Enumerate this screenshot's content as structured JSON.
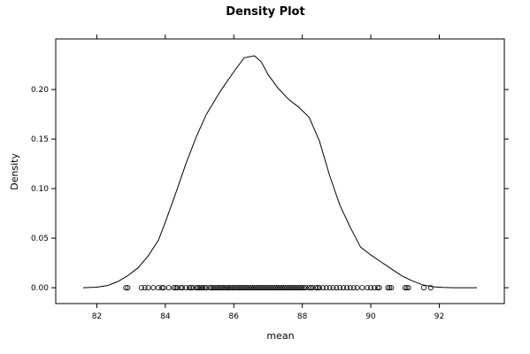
{
  "chart_data": {
    "type": "line",
    "title": "Density Plot",
    "xlabel": "mean",
    "ylabel": "Density",
    "xlim": [
      80.8,
      93.9
    ],
    "ylim": [
      -0.016,
      0.251
    ],
    "x_ticks": [
      82,
      84,
      86,
      88,
      90,
      92
    ],
    "x_tick_labels": [
      "82",
      "84",
      "86",
      "88",
      "90",
      "92"
    ],
    "y_ticks": [
      0.0,
      0.05,
      0.1,
      0.15,
      0.2
    ],
    "y_tick_labels": [
      "0.00",
      "0.05",
      "0.10",
      "0.15",
      "0.20"
    ],
    "grid": false,
    "legend": "none",
    "line_color": "#000000",
    "point_color": "#000000",
    "series": [
      {
        "kind": "density-curve",
        "x": [
          81.6,
          82.0,
          82.3,
          82.6,
          82.9,
          83.2,
          83.5,
          83.8,
          84.0,
          84.3,
          84.6,
          84.9,
          85.2,
          85.6,
          86.0,
          86.3,
          86.6,
          86.8,
          87.0,
          87.3,
          87.6,
          87.9,
          88.2,
          88.5,
          88.8,
          89.1,
          89.4,
          89.7,
          90.0,
          90.3,
          90.6,
          90.9,
          91.2,
          91.5,
          91.8,
          92.1,
          92.4,
          92.7,
          93.1
        ],
        "y": [
          0.0,
          0.0005,
          0.002,
          0.006,
          0.012,
          0.02,
          0.032,
          0.048,
          0.066,
          0.095,
          0.125,
          0.152,
          0.175,
          0.198,
          0.218,
          0.232,
          0.234,
          0.228,
          0.215,
          0.201,
          0.19,
          0.182,
          0.172,
          0.148,
          0.113,
          0.083,
          0.061,
          0.041,
          0.033,
          0.026,
          0.019,
          0.012,
          0.007,
          0.003,
          0.001,
          0.0003,
          0.0,
          0.0,
          0.0
        ]
      },
      {
        "kind": "rug-points",
        "y_level": 0,
        "x": [
          82.85,
          82.9,
          83.3,
          83.4,
          83.5,
          83.65,
          83.8,
          83.9,
          83.95,
          84.1,
          84.25,
          84.3,
          84.35,
          84.45,
          84.5,
          84.6,
          84.7,
          84.75,
          84.8,
          84.9,
          84.95,
          85.0,
          85.05,
          85.1,
          85.15,
          85.2,
          85.3,
          85.35,
          85.4,
          85.45,
          85.5,
          85.55,
          85.6,
          85.65,
          85.7,
          85.75,
          85.8,
          85.85,
          85.9,
          85.95,
          86.0,
          86.05,
          86.1,
          86.15,
          86.2,
          86.25,
          86.3,
          86.35,
          86.4,
          86.45,
          86.5,
          86.55,
          86.6,
          86.65,
          86.7,
          86.75,
          86.8,
          86.85,
          86.9,
          86.95,
          87.0,
          87.05,
          87.1,
          87.15,
          87.2,
          87.25,
          87.3,
          87.35,
          87.4,
          87.45,
          87.5,
          87.55,
          87.6,
          87.65,
          87.7,
          87.75,
          87.8,
          87.85,
          87.9,
          87.95,
          88.0,
          88.05,
          88.1,
          88.2,
          88.25,
          88.3,
          88.4,
          88.45,
          88.5,
          88.6,
          88.7,
          88.8,
          88.9,
          89.0,
          89.1,
          89.2,
          89.3,
          89.4,
          89.5,
          89.6,
          89.75,
          89.9,
          90.0,
          90.1,
          90.2,
          90.25,
          90.5,
          90.55,
          90.6,
          91.0,
          91.05,
          91.1,
          91.55,
          91.75
        ]
      }
    ]
  }
}
